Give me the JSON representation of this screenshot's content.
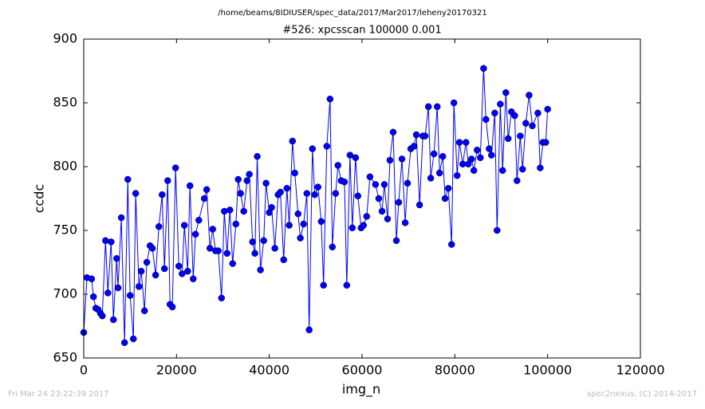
{
  "chart_data": {
    "type": "line",
    "suptitle": "/home/beams/8IDIUSER/spec_data/2017/Mar2017/leheny20170321",
    "title": "#526: xpcsscan 100000 0.001",
    "x_label": "img_n",
    "y_label": "ccdc",
    "footer_left": "Fri Mar 24 23:22:39 2017",
    "footer_right": "spec2nexus, (C) 2014-2017",
    "x": [
      0,
      700,
      1700,
      2100,
      2600,
      3100,
      3600,
      4000,
      4700,
      5200,
      5900,
      6400,
      7100,
      7400,
      8100,
      8800,
      9500,
      10000,
      10700,
      11200,
      11900,
      12400,
      13100,
      13600,
      14300,
      14800,
      15500,
      16200,
      16900,
      17400,
      18100,
      18600,
      19100,
      19800,
      20500,
      21200,
      21700,
      22400,
      22900,
      23600,
      24100,
      24800,
      26000,
      26500,
      27200,
      27800,
      28400,
      29000,
      29700,
      30300,
      30900,
      31500,
      32100,
      32800,
      33300,
      33800,
      34500,
      35200,
      35700,
      36400,
      36900,
      37400,
      38100,
      38800,
      39300,
      40000,
      40500,
      41200,
      41900,
      42400,
      43100,
      43800,
      44300,
      45000,
      45500,
      46200,
      46700,
      47400,
      48100,
      48600,
      49300,
      49800,
      50500,
      51200,
      51700,
      52400,
      53100,
      53600,
      54300,
      54800,
      55500,
      56200,
      56700,
      57400,
      57900,
      58600,
      59100,
      59800,
      60300,
      61000,
      61700,
      62900,
      63600,
      64300,
      64800,
      65500,
      66000,
      66700,
      67400,
      67900,
      68600,
      69300,
      69800,
      70500,
      71200,
      71700,
      72400,
      73100,
      73600,
      74300,
      74800,
      75500,
      76200,
      76700,
      77400,
      77900,
      78600,
      79300,
      79800,
      80500,
      81000,
      81700,
      82400,
      82900,
      83600,
      84100,
      84800,
      85500,
      86200,
      86700,
      87400,
      87900,
      88600,
      89100,
      89800,
      90300,
      91000,
      91500,
      92200,
      92900,
      93400,
      94100,
      94600,
      95300,
      96000,
      96700,
      97900,
      98400,
      99000,
      99600,
      100000
    ],
    "series": [
      {
        "name": "ccdc",
        "color": "#0000ff",
        "values": [
          670,
          713,
          712,
          698,
          689,
          688,
          685,
          683,
          742,
          701,
          741,
          680,
          728,
          705,
          760,
          662,
          790,
          699,
          665,
          779,
          706,
          718,
          687,
          725,
          738,
          736,
          715,
          753,
          778,
          720,
          789,
          692,
          690,
          799,
          722,
          716,
          754,
          718,
          785,
          712,
          747,
          758,
          775,
          782,
          736,
          751,
          734,
          734,
          697,
          765,
          732,
          766,
          724,
          755,
          790,
          779,
          765,
          789,
          794,
          741,
          732,
          808,
          719,
          742,
          787,
          764,
          768,
          736,
          778,
          780,
          727,
          783,
          754,
          820,
          795,
          763,
          744,
          755,
          779,
          672,
          814,
          778,
          784,
          757,
          707,
          816,
          853,
          737,
          779,
          801,
          789,
          788,
          707,
          809,
          752,
          807,
          777,
          752,
          754,
          761,
          792,
          786,
          775,
          765,
          786,
          759,
          805,
          827,
          742,
          772,
          806,
          756,
          787,
          814,
          816,
          825,
          770,
          824,
          824,
          847,
          791,
          810,
          847,
          795,
          808,
          775,
          783,
          739,
          850,
          793,
          819,
          802,
          819,
          802,
          806,
          797,
          813,
          807,
          877,
          837,
          814,
          809,
          842,
          750,
          849,
          797,
          858,
          822,
          843,
          840,
          789,
          824,
          798,
          834,
          856,
          832,
          842,
          799,
          819,
          819,
          845
        ]
      }
    ],
    "xlim": [
      0,
      120000
    ],
    "xticks": [
      0,
      20000,
      40000,
      60000,
      80000,
      100000,
      120000
    ],
    "ylim": [
      650,
      900
    ],
    "yticks": [
      650,
      700,
      750,
      800,
      850,
      900
    ],
    "grid": false
  }
}
